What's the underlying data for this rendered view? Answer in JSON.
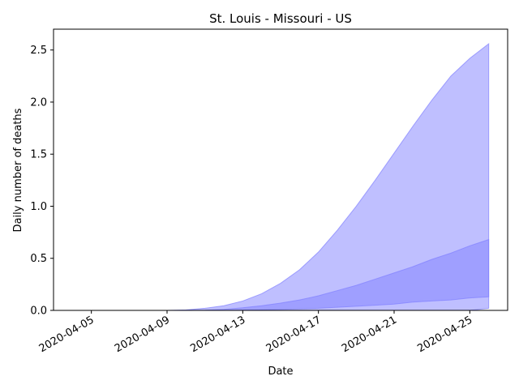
{
  "chart_data": {
    "type": "area",
    "title": "St. Louis - Missouri - US",
    "xlabel": "Date",
    "ylabel": "Daily number of deaths",
    "x_range": [
      "2020-04-03",
      "2020-04-27"
    ],
    "ylim": [
      0,
      2.7
    ],
    "grid": false,
    "legend": "none",
    "x": [
      "2020-04-05",
      "2020-04-06",
      "2020-04-07",
      "2020-04-08",
      "2020-04-09",
      "2020-04-10",
      "2020-04-11",
      "2020-04-12",
      "2020-04-13",
      "2020-04-14",
      "2020-04-15",
      "2020-04-16",
      "2020-04-17",
      "2020-04-18",
      "2020-04-19",
      "2020-04-20",
      "2020-04-21",
      "2020-04-22",
      "2020-04-23",
      "2020-04-24",
      "2020-04-25",
      "2020-04-26"
    ],
    "series": [
      {
        "color": "#8080ff",
        "opacity": 0.5,
        "lower": [
          0,
          0,
          0,
          0,
          0,
          0,
          0,
          0,
          0,
          0,
          0,
          0,
          0,
          0,
          0,
          0,
          0,
          0,
          0,
          0,
          0,
          0.02
        ],
        "upper": [
          0,
          0,
          0,
          0,
          0,
          0.005,
          0.02,
          0.045,
          0.09,
          0.16,
          0.26,
          0.39,
          0.56,
          0.77,
          1.0,
          1.25,
          1.51,
          1.77,
          2.02,
          2.25,
          2.42,
          2.56
        ]
      },
      {
        "color": "#8080ff",
        "opacity": 0.5,
        "lower": [
          0,
          0,
          0,
          0,
          0,
          0,
          0,
          0,
          0,
          0.005,
          0.01,
          0.015,
          0.02,
          0.03,
          0.04,
          0.05,
          0.06,
          0.08,
          0.09,
          0.1,
          0.12,
          0.13
        ],
        "upper": [
          0,
          0,
          0,
          0,
          0,
          0,
          0.002,
          0.01,
          0.025,
          0.045,
          0.07,
          0.1,
          0.14,
          0.19,
          0.24,
          0.3,
          0.36,
          0.42,
          0.49,
          0.55,
          0.62,
          0.68
        ]
      }
    ],
    "x_ticks": [
      "2020-04-05",
      "2020-04-09",
      "2020-04-13",
      "2020-04-17",
      "2020-04-21",
      "2020-04-25"
    ],
    "y_ticks": [
      0.0,
      0.5,
      1.0,
      1.5,
      2.0,
      2.5
    ],
    "y_tick_labels": [
      "0.0",
      "0.5",
      "1.0",
      "1.5",
      "2.0",
      "2.5"
    ]
  }
}
